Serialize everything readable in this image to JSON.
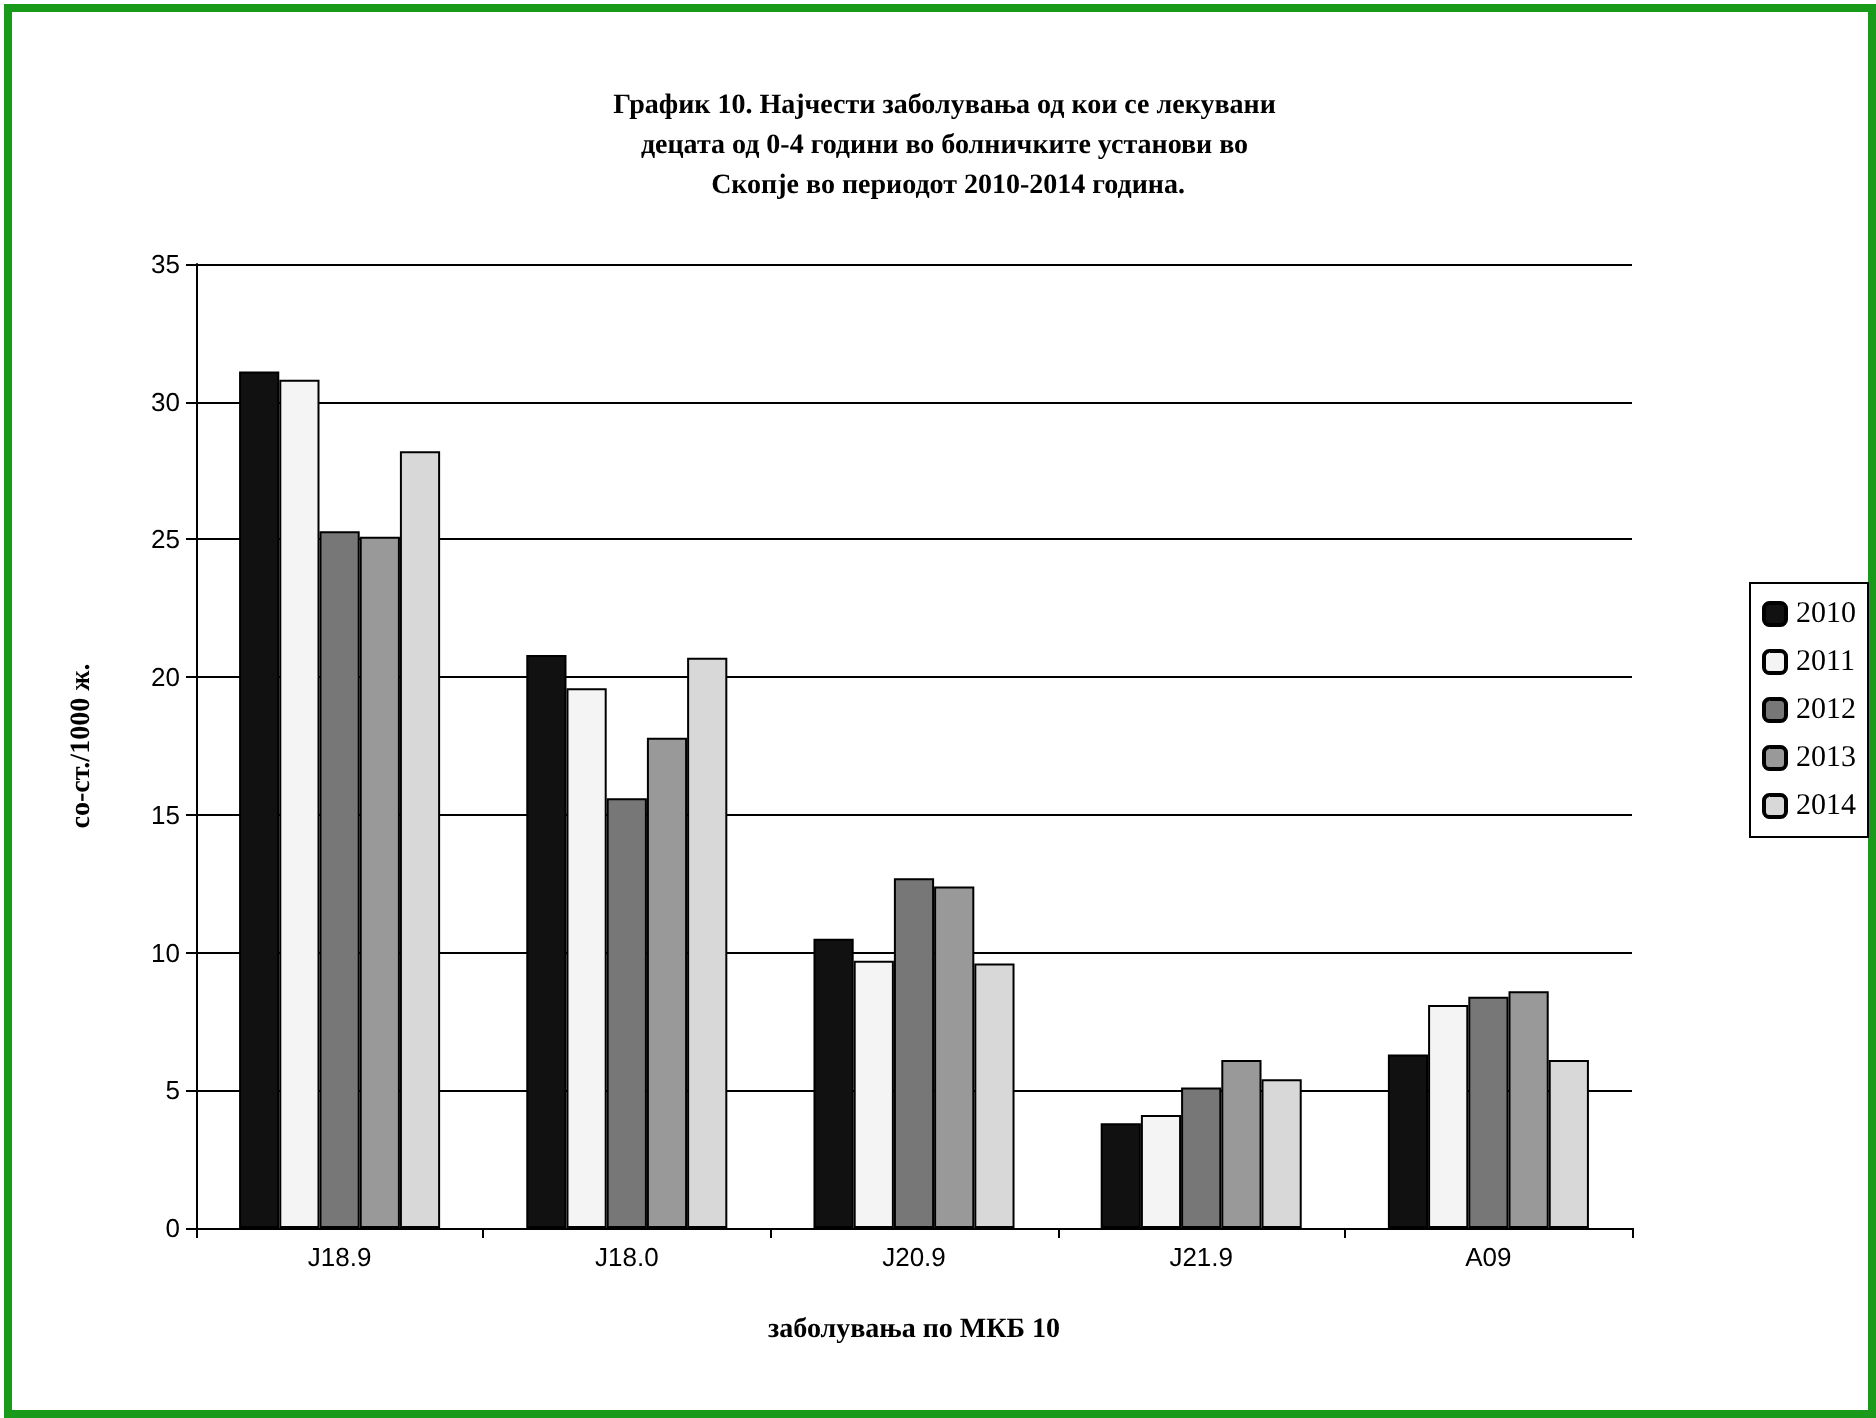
{
  "chart_data": {
    "type": "bar",
    "title": "График 10. Најчести заболувања од кои се лекувани децата од 0-4 години во болничките установи во Скопје во периодот 2010-2014 година.",
    "xlabel": "заболувања по МКБ 10",
    "ylabel": "со-ст./1000 ж.",
    "categories": [
      "J18.9",
      "J18.0",
      "J20.9",
      "J21.9",
      "A09"
    ],
    "series": [
      {
        "name": "2010",
        "color": "#111111",
        "values": [
          31.1,
          20.8,
          10.5,
          3.8,
          6.3
        ]
      },
      {
        "name": "2011",
        "color": "#f4f4f4",
        "values": [
          30.8,
          19.6,
          9.7,
          4.1,
          8.1
        ]
      },
      {
        "name": "2012",
        "color": "#777777",
        "values": [
          25.3,
          15.6,
          12.7,
          5.1,
          8.4
        ]
      },
      {
        "name": "2013",
        "color": "#999999",
        "values": [
          25.1,
          17.8,
          12.4,
          6.1,
          8.6
        ]
      },
      {
        "name": "2014",
        "color": "#d8d8d8",
        "values": [
          28.2,
          20.7,
          9.6,
          5.4,
          6.1
        ]
      }
    ],
    "ylim": [
      0,
      35
    ],
    "yticks": [
      0,
      5,
      10,
      15,
      20,
      25,
      30,
      35
    ],
    "grid": "y",
    "legend": "right"
  }
}
